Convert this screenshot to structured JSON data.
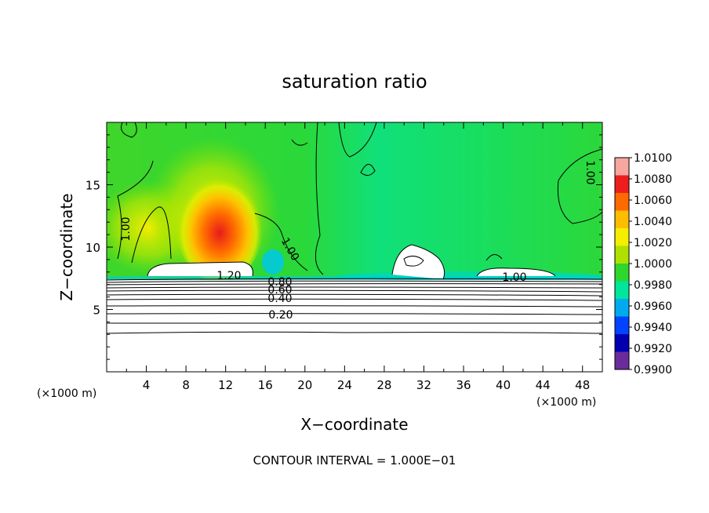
{
  "chart_data": {
    "type": "heatmap",
    "title": "saturation ratio",
    "xlabel": "X−coordinate",
    "ylabel": "Z−coordinate",
    "x_unit": "(×1000 m)",
    "y_unit": "(×1000 m)",
    "xlim": [
      0,
      50
    ],
    "ylim": [
      0,
      20
    ],
    "x_ticks": [
      "4",
      "8",
      "12",
      "16",
      "20",
      "24",
      "28",
      "32",
      "36",
      "40",
      "44",
      "48"
    ],
    "y_ticks": [
      "5",
      "10",
      "15"
    ],
    "colorbar": {
      "range": [
        0.99,
        1.01
      ],
      "labels": [
        "1.0100",
        "1.0080",
        "1.0060",
        "1.0040",
        "1.0020",
        "1.0000",
        "0.9980",
        "0.9960",
        "0.9940",
        "0.9920",
        "0.9900"
      ],
      "colors": [
        "#f7a6a0",
        "#ee1e1e",
        "#ff6a00",
        "#ffbd00",
        "#f4ee00",
        "#aee000",
        "#2ed62e",
        "#00e69a",
        "#00aaee",
        "#0044ff",
        "#0000b0",
        "#6a2c9c"
      ]
    },
    "contour_labels": [
      "1.00",
      "1.00",
      "1.00",
      "1.20",
      "0.80",
      "0.60",
      "0.40",
      "0.20",
      "1.00"
    ],
    "contour_interval_text": "CONTOUR INTERVAL = 1.000E−01",
    "grid": false,
    "legend": "colorbar-right"
  }
}
